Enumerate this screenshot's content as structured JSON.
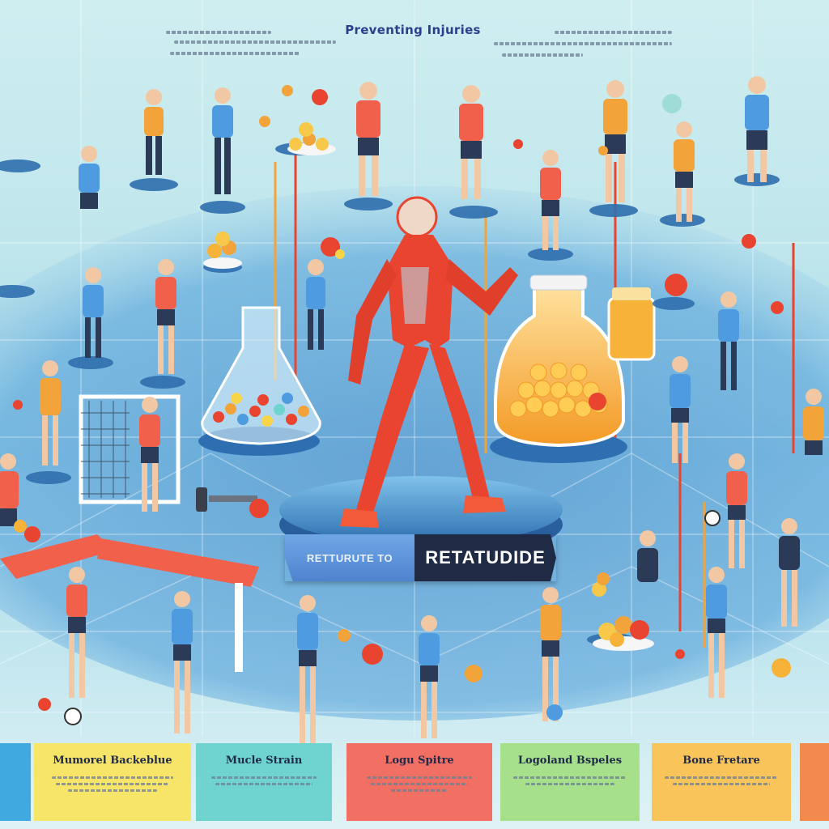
{
  "header": {
    "title": "Preventing Injuries"
  },
  "center_banner": {
    "left_text": "RETTURUTE TO",
    "right_text": "RETATUDIDE"
  },
  "cards": [
    {
      "title": "",
      "color": "#3fa9e0"
    },
    {
      "title": "Mumorel Backeblue",
      "color": "#f7e56a"
    },
    {
      "title": "Mucle Strain",
      "color": "#6fd3cf"
    },
    {
      "title": "Logu Spitre",
      "color": "#f26f63"
    },
    {
      "title": "Logoland Bspeles",
      "color": "#a6e08a"
    },
    {
      "title": "Bone Fretare",
      "color": "#f9c45a"
    },
    {
      "title": "",
      "color": "#f28a4d"
    }
  ],
  "colors": {
    "muscle_red": "#e8442f",
    "jar_orange": "#f7a52b",
    "platform_blue": "#5aa3d8",
    "banner_dark": "#1f2b45"
  },
  "icons": [
    "anatomy-runner-icon",
    "flask-icon",
    "jar-icon",
    "goal-net-icon",
    "dumbbell-icon",
    "ball-icon",
    "athlete-icon"
  ]
}
